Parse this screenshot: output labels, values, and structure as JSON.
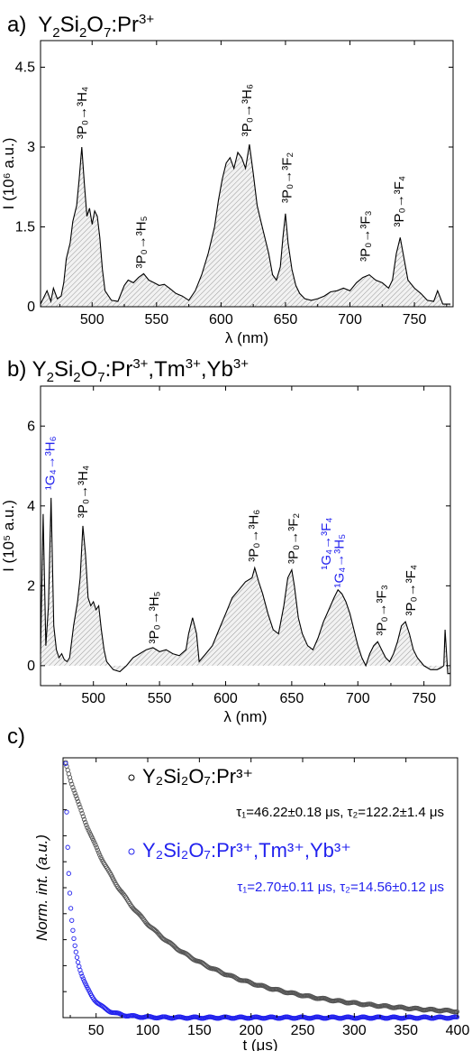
{
  "panel_a": {
    "label": "a)",
    "title_html": "Y<sub>2</sub>Si<sub>2</sub>O<sub>7</sub>:Pr<sup>3+</sup>"
  },
  "panel_b": {
    "label": "b)",
    "title_html": "Y<sub>2</sub>Si<sub>2</sub>O<sub>7</sub>:Pr<sup>3+</sup>,Tm<sup>3+</sup>,Yb<sup>3+</sup>"
  },
  "panel_c": {
    "label": "c)"
  },
  "colors": {
    "black": "#000000",
    "blue": "#2222ee",
    "fill": "#dcdcdc",
    "decay_black": "#555555"
  },
  "chart_data": [
    {
      "type": "area",
      "panel": "a",
      "xlabel": "λ (nm)",
      "ylabel": "I (10⁶ a.u.)",
      "xlim": [
        460,
        780
      ],
      "ylim": [
        0,
        5
      ],
      "xticks": [
        500,
        550,
        600,
        650,
        700,
        750
      ],
      "yticks": [
        0,
        1.5,
        3,
        4.5
      ],
      "ytick_labels": [
        "0",
        "1.5",
        "3",
        "4.5"
      ],
      "series": [
        {
          "x": [
            460,
            465,
            468,
            470,
            473,
            476,
            478,
            480,
            483,
            485,
            488,
            490,
            492,
            494,
            496,
            498,
            500,
            502,
            504,
            506,
            508,
            510,
            515,
            520,
            525,
            528,
            532,
            536,
            540,
            544,
            548,
            552,
            556,
            560,
            565,
            570,
            575,
            580,
            585,
            590,
            595,
            598,
            601,
            604,
            607,
            610,
            613,
            616,
            619,
            622,
            625,
            628,
            631,
            634,
            637,
            640,
            643,
            646,
            648,
            650,
            652,
            655,
            658,
            661,
            665,
            670,
            675,
            680,
            685,
            690,
            695,
            700,
            705,
            710,
            715,
            720,
            725,
            730,
            733,
            736,
            739,
            742,
            745,
            750,
            755,
            760,
            765,
            768,
            772,
            778
          ],
          "y": [
            0.05,
            0.3,
            0.1,
            0.35,
            0.15,
            0.2,
            0.45,
            0.9,
            1.2,
            1.6,
            1.9,
            2.4,
            3.0,
            2.3,
            1.7,
            1.85,
            1.55,
            1.8,
            1.7,
            1.3,
            0.7,
            0.3,
            0.12,
            0.1,
            0.4,
            0.5,
            0.45,
            0.55,
            0.62,
            0.5,
            0.45,
            0.4,
            0.42,
            0.35,
            0.25,
            0.2,
            0.12,
            0.3,
            0.6,
            1.0,
            1.5,
            2.0,
            2.4,
            2.7,
            2.8,
            2.6,
            2.9,
            2.8,
            2.6,
            3.05,
            2.5,
            1.9,
            1.6,
            1.3,
            1.0,
            0.6,
            0.5,
            0.75,
            1.3,
            1.75,
            1.2,
            0.7,
            0.4,
            0.25,
            0.15,
            0.12,
            0.15,
            0.2,
            0.28,
            0.3,
            0.35,
            0.3,
            0.45,
            0.55,
            0.6,
            0.5,
            0.45,
            0.35,
            0.5,
            1.0,
            1.3,
            0.9,
            0.5,
            0.35,
            0.25,
            0.12,
            0.1,
            0.3,
            0.05,
            0.05
          ]
        }
      ],
      "annotations": [
        {
          "text": "³P₀→³H₄",
          "color": "black"
        },
        {
          "text": "³P₀→³H₅",
          "color": "black"
        },
        {
          "text": "³P₀→³H₆",
          "color": "black"
        },
        {
          "text": "³P₀→³F₂",
          "color": "black"
        },
        {
          "text": "³P₀→³F₃",
          "color": "black"
        },
        {
          "text": "³P₀→³F₄",
          "color": "black"
        }
      ]
    },
    {
      "type": "area",
      "panel": "b",
      "xlabel": "λ (nm)",
      "ylabel": "I (10⁵ a.u.)",
      "xlim": [
        460,
        770
      ],
      "ylim": [
        -0.5,
        7
      ],
      "xticks": [
        500,
        550,
        600,
        650,
        700,
        750
      ],
      "yticks": [
        0,
        2,
        4,
        6
      ],
      "series": [
        {
          "x": [
            460,
            462,
            464,
            466,
            468,
            470,
            472,
            474,
            476,
            478,
            480,
            482,
            485,
            488,
            490,
            492,
            494,
            496,
            498,
            500,
            502,
            504,
            506,
            508,
            510,
            515,
            520,
            525,
            530,
            535,
            540,
            545,
            550,
            555,
            560,
            565,
            570,
            572,
            575,
            578,
            580,
            585,
            590,
            595,
            600,
            605,
            610,
            615,
            620,
            622,
            625,
            628,
            632,
            636,
            640,
            644,
            647,
            650,
            652,
            655,
            658,
            662,
            666,
            670,
            674,
            678,
            682,
            685,
            688,
            691,
            694,
            697,
            700,
            703,
            706,
            709,
            712,
            715,
            718,
            721,
            724,
            727,
            730,
            733,
            736,
            739,
            742,
            745,
            750,
            755,
            760,
            763,
            765,
            766,
            768,
            770
          ],
          "y": [
            0.3,
            3.8,
            0.5,
            1.5,
            4.2,
            1.0,
            0.4,
            0.2,
            0.3,
            0.15,
            0.1,
            0.2,
            1.0,
            1.6,
            2.2,
            3.5,
            2.8,
            1.7,
            1.5,
            1.6,
            1.4,
            1.5,
            0.9,
            0.4,
            0.1,
            -0.1,
            -0.15,
            0.0,
            0.2,
            0.3,
            0.4,
            0.45,
            0.35,
            0.4,
            0.3,
            0.25,
            0.4,
            0.8,
            1.2,
            0.8,
            0.1,
            0.3,
            0.5,
            0.9,
            1.3,
            1.7,
            1.9,
            2.1,
            2.2,
            2.45,
            2.1,
            1.8,
            1.3,
            0.9,
            0.8,
            1.5,
            2.2,
            2.4,
            2.0,
            1.2,
            0.8,
            0.5,
            0.4,
            0.7,
            1.1,
            1.4,
            1.7,
            1.9,
            1.8,
            1.6,
            1.3,
            0.9,
            0.5,
            0.2,
            0.0,
            0.3,
            0.5,
            0.6,
            0.4,
            0.2,
            0.1,
            0.3,
            0.6,
            1.0,
            1.1,
            0.8,
            0.4,
            0.2,
            0.0,
            -0.1,
            -0.1,
            -0.05,
            0.0,
            0.9,
            -0.2,
            -0.2
          ]
        }
      ],
      "annotations": [
        {
          "text": "¹G₄→³H₆",
          "color": "blue"
        },
        {
          "text": "³P₀→³H₄",
          "color": "black"
        },
        {
          "text": "³P₀→³H₅",
          "color": "black"
        },
        {
          "text": "³P₀→³H₆",
          "color": "black"
        },
        {
          "text": "³P₀→³F₂",
          "color": "black"
        },
        {
          "text": "¹G₄→³F₄",
          "color": "blue"
        },
        {
          "text": "¹G₄→³H₅",
          "color": "blue"
        },
        {
          "text": "³P₀→³F₃",
          "color": "black"
        },
        {
          "text": "³P₀→³F₄",
          "color": "black"
        }
      ]
    },
    {
      "type": "scatter",
      "panel": "c",
      "xlabel": "t (μs)",
      "ylabel": "Norm. int. (a.u.)",
      "xlim": [
        18,
        400
      ],
      "ylim": [
        0,
        1.02
      ],
      "xticks": [
        50,
        100,
        150,
        200,
        250,
        300,
        350,
        400
      ],
      "series": [
        {
          "name": "Y₂Si₂O₇:Pr³⁺",
          "color": "black",
          "t0": 20,
          "amp1": 0.45,
          "tau1": 46.22,
          "amp2": 0.55,
          "tau2": 122.2,
          "t_end": 400,
          "fit_text": "τ₁=46.22±0.18 μs, τ₂=122.2±1.4 μs"
        },
        {
          "name": "Y₂Si₂O₇:Pr³⁺,Tm³⁺,Yb³⁺",
          "color": "blue",
          "t0": 20,
          "amp1": 0.55,
          "tau1": 2.7,
          "amp2": 0.45,
          "tau2": 14.56,
          "t_end": 400,
          "fit_text": "τ₁=2.70±0.11 μs, τ₂=14.56±0.12 μs"
        }
      ]
    }
  ]
}
